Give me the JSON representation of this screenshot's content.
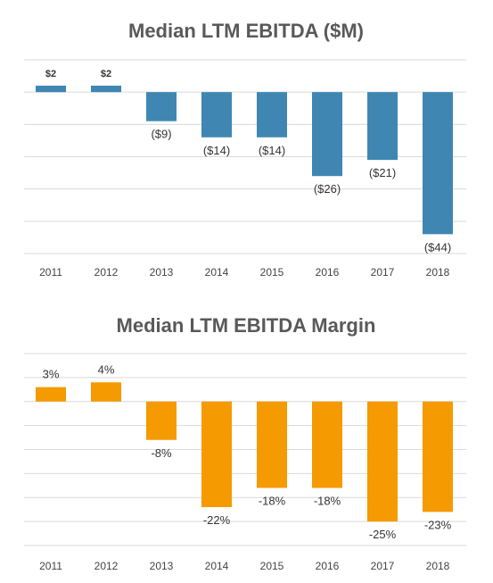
{
  "chart_data": [
    {
      "type": "bar",
      "title": "Median LTM EBITDA ($M)",
      "categories": [
        "2011",
        "2012",
        "2013",
        "2014",
        "2015",
        "2016",
        "2017",
        "2018"
      ],
      "values": [
        2,
        2,
        -9,
        -14,
        -14,
        -26,
        -21,
        -44
      ],
      "data_labels": [
        "$2",
        "$2",
        "($9)",
        "($14)",
        "($14)",
        "($26)",
        "($21)",
        "($44)"
      ],
      "ylim": [
        -50,
        10
      ],
      "grid": true,
      "color": "#3F86B3"
    },
    {
      "type": "bar",
      "title": "Median LTM EBITDA Margin",
      "categories": [
        "2011",
        "2012",
        "2013",
        "2014",
        "2015",
        "2016",
        "2017",
        "2018"
      ],
      "values": [
        3,
        4,
        -8,
        -22,
        -18,
        -18,
        -25,
        -23
      ],
      "data_labels": [
        "3%",
        "4%",
        "-8%",
        "-22%",
        "-18%",
        "-18%",
        "-25%",
        "-23%"
      ],
      "ylim": [
        -30,
        10
      ],
      "grid": true,
      "color": "#F59A00"
    }
  ]
}
